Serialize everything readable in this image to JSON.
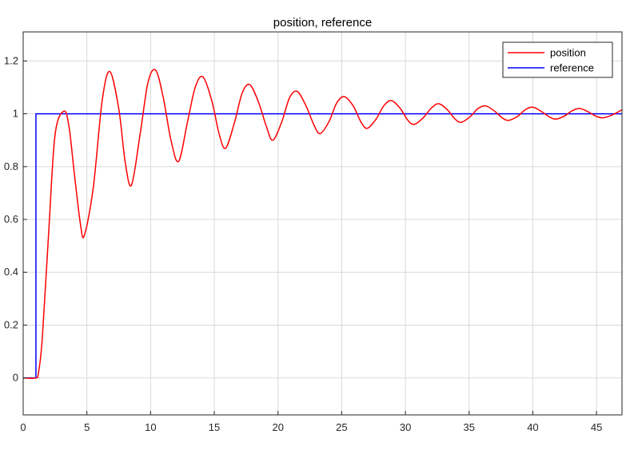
{
  "chart_data": {
    "type": "line",
    "title": "position, reference",
    "xlabel": "",
    "ylabel": "",
    "xlim": [
      0,
      47
    ],
    "ylim": [
      -0.14,
      1.31
    ],
    "x_ticks": [
      0,
      5,
      10,
      15,
      20,
      25,
      30,
      35,
      40,
      45
    ],
    "x_tick_labels": [
      "0",
      "5",
      "10",
      "15",
      "20",
      "25",
      "30",
      "35",
      "40",
      "45"
    ],
    "y_ticks": [
      0,
      0.2,
      0.4,
      0.6,
      0.8,
      1,
      1.2
    ],
    "y_tick_labels": [
      "0",
      "0.2",
      "0.4",
      "0.6",
      "0.8",
      "1",
      "1.2"
    ],
    "grid": true,
    "legend_position": "top-right",
    "series": [
      {
        "name": "position",
        "color": "#ff0000",
        "x": [
          0,
          1,
          1.2,
          1.5,
          2,
          2.5,
          3.2,
          3.6,
          4,
          4.5,
          4.8,
          5.5,
          6.2,
          6.8,
          7.5,
          8,
          8.5,
          9.2,
          9.8,
          10.4,
          11,
          11.6,
          12.2,
          12.9,
          13.5,
          14.1,
          14.8,
          15.4,
          15.9,
          16.6,
          17.2,
          17.8,
          18.5,
          19.1,
          19.6,
          20.3,
          20.9,
          21.5,
          22.2,
          22.8,
          23.3,
          24,
          24.6,
          25.2,
          25.9,
          26.5,
          27,
          27.7,
          28.3,
          28.9,
          29.6,
          30.2,
          30.7,
          31.4,
          32,
          32.6,
          33.3,
          33.9,
          34.4,
          35.1,
          35.7,
          36.3,
          37,
          37.6,
          38.1,
          38.8,
          39.4,
          40,
          40.7,
          41.3,
          41.8,
          42.5,
          43.1,
          43.7,
          44.4,
          45,
          45.5,
          46.2,
          47
        ],
        "y": [
          0,
          0,
          0.02,
          0.15,
          0.55,
          0.92,
          1.01,
          0.95,
          0.78,
          0.58,
          0.54,
          0.72,
          1.05,
          1.16,
          1.02,
          0.82,
          0.73,
          0.93,
          1.12,
          1.165,
          1.06,
          0.9,
          0.82,
          0.97,
          1.1,
          1.14,
          1.05,
          0.92,
          0.87,
          0.97,
          1.08,
          1.11,
          1.04,
          0.95,
          0.9,
          0.97,
          1.06,
          1.085,
          1.03,
          0.96,
          0.925,
          0.97,
          1.04,
          1.065,
          1.03,
          0.97,
          0.945,
          0.98,
          1.03,
          1.05,
          1.02,
          0.975,
          0.96,
          0.985,
          1.02,
          1.038,
          1.015,
          0.98,
          0.968,
          0.99,
          1.02,
          1.03,
          1.01,
          0.985,
          0.975,
          0.99,
          1.015,
          1.025,
          1.008,
          0.988,
          0.98,
          0.992,
          1.012,
          1.02,
          1.006,
          0.99,
          0.985,
          0.995,
          1.015
        ]
      },
      {
        "name": "reference",
        "color": "#0000ff",
        "x": [
          0,
          1,
          1,
          47
        ],
        "y": [
          0,
          0,
          1,
          1
        ]
      }
    ]
  }
}
